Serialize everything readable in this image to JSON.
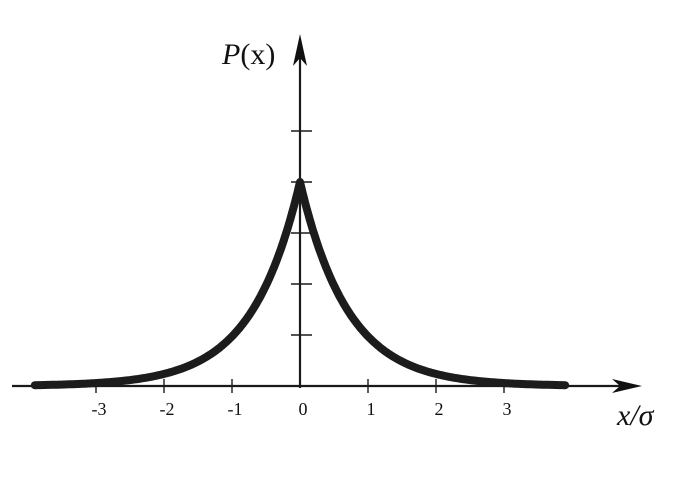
{
  "chart_data": {
    "type": "line",
    "title": "",
    "xlabel": "x/σ",
    "ylabel_main": "P",
    "ylabel_arg": "(x)",
    "xlim": [
      -4,
      4.4
    ],
    "ylim": [
      0,
      1.5
    ],
    "xticks": [
      -3,
      -2,
      -1,
      0,
      1,
      2,
      3
    ],
    "xtick_labels": [
      "-3",
      "-2",
      "-1",
      "0",
      "1",
      "2",
      "3"
    ],
    "yticks_unlabeled": [
      0.25,
      0.5,
      0.75,
      1.0,
      1.25
    ],
    "grid": false,
    "series": [
      {
        "x": [
          -3.9,
          -3.5,
          -3.0,
          -2.5,
          -2.0,
          -1.5,
          -1.0,
          -0.5,
          0,
          0.5,
          1.0,
          1.5,
          2.0,
          2.5,
          3.0,
          3.5,
          3.9
        ],
        "y": [
          0.0045,
          0.0071,
          0.0144,
          0.0291,
          0.0591,
          0.1199,
          0.2431,
          0.4931,
          1.0,
          0.4931,
          0.2431,
          0.1199,
          0.0591,
          0.0291,
          0.0144,
          0.0071,
          0.0045
        ]
      }
    ]
  }
}
